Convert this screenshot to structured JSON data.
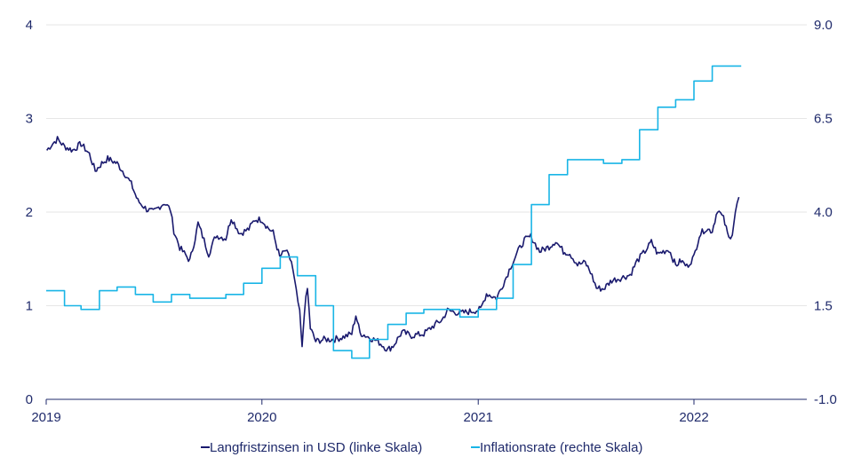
{
  "chart_data": {
    "type": "line",
    "x_range": [
      "2019-01-01",
      "2022-12-31"
    ],
    "x_ticks": [
      "2019",
      "2020",
      "2021",
      "2022"
    ],
    "y_left": {
      "ticks": [
        "0",
        "1",
        "2",
        "3",
        "4"
      ],
      "min": 0,
      "max": 4
    },
    "y_right": {
      "ticks": [
        "-1.0",
        "1.5",
        "4.0",
        "6.5",
        "9.0"
      ],
      "min": -1.0,
      "max": 9.0
    },
    "grid": "horizontal",
    "legend_placement": "bottom",
    "series": [
      {
        "name": "Langfristzinsen in USD (linke Skala)",
        "axis": "left",
        "color": "#1a1a6e",
        "points": [
          [
            "2019-01-02",
            2.66
          ],
          [
            "2019-01-10",
            2.72
          ],
          [
            "2019-01-20",
            2.78
          ],
          [
            "2019-02-01",
            2.7
          ],
          [
            "2019-02-15",
            2.66
          ],
          [
            "2019-03-01",
            2.73
          ],
          [
            "2019-03-15",
            2.62
          ],
          [
            "2019-03-25",
            2.44
          ],
          [
            "2019-04-05",
            2.52
          ],
          [
            "2019-04-15",
            2.57
          ],
          [
            "2019-05-01",
            2.52
          ],
          [
            "2019-05-15",
            2.4
          ],
          [
            "2019-05-25",
            2.3
          ],
          [
            "2019-06-05",
            2.12
          ],
          [
            "2019-06-20",
            2.03
          ],
          [
            "2019-07-01",
            2.0
          ],
          [
            "2019-07-10",
            2.05
          ],
          [
            "2019-07-20",
            2.1
          ],
          [
            "2019-07-30",
            2.03
          ],
          [
            "2019-08-05",
            1.8
          ],
          [
            "2019-08-15",
            1.62
          ],
          [
            "2019-08-25",
            1.54
          ],
          [
            "2019-09-01",
            1.48
          ],
          [
            "2019-09-10",
            1.72
          ],
          [
            "2019-09-15",
            1.88
          ],
          [
            "2019-09-25",
            1.7
          ],
          [
            "2019-10-03",
            1.55
          ],
          [
            "2019-10-15",
            1.75
          ],
          [
            "2019-11-01",
            1.72
          ],
          [
            "2019-11-10",
            1.94
          ],
          [
            "2019-11-25",
            1.77
          ],
          [
            "2019-12-10",
            1.82
          ],
          [
            "2019-12-20",
            1.92
          ],
          [
            "2020-01-01",
            1.92
          ],
          [
            "2020-01-10",
            1.84
          ],
          [
            "2020-01-20",
            1.78
          ],
          [
            "2020-01-31",
            1.52
          ],
          [
            "2020-02-10",
            1.59
          ],
          [
            "2020-02-20",
            1.47
          ],
          [
            "2020-02-28",
            1.15
          ],
          [
            "2020-03-05",
            0.92
          ],
          [
            "2020-03-09",
            0.54
          ],
          [
            "2020-03-13",
            0.96
          ],
          [
            "2020-03-18",
            1.18
          ],
          [
            "2020-03-23",
            0.76
          ],
          [
            "2020-04-01",
            0.62
          ],
          [
            "2020-04-15",
            0.64
          ],
          [
            "2020-05-01",
            0.64
          ],
          [
            "2020-05-15",
            0.66
          ],
          [
            "2020-06-01",
            0.7
          ],
          [
            "2020-06-08",
            0.9
          ],
          [
            "2020-06-15",
            0.71
          ],
          [
            "2020-07-01",
            0.66
          ],
          [
            "2020-07-15",
            0.62
          ],
          [
            "2020-08-01",
            0.53
          ],
          [
            "2020-08-10",
            0.57
          ],
          [
            "2020-08-25",
            0.72
          ],
          [
            "2020-09-10",
            0.68
          ],
          [
            "2020-10-01",
            0.7
          ],
          [
            "2020-10-20",
            0.8
          ],
          [
            "2020-11-01",
            0.85
          ],
          [
            "2020-11-10",
            0.95
          ],
          [
            "2020-12-01",
            0.92
          ],
          [
            "2020-12-20",
            0.94
          ],
          [
            "2021-01-05",
            0.96
          ],
          [
            "2021-01-15",
            1.13
          ],
          [
            "2021-02-01",
            1.08
          ],
          [
            "2021-02-15",
            1.27
          ],
          [
            "2021-02-25",
            1.42
          ],
          [
            "2021-03-10",
            1.59
          ],
          [
            "2021-03-20",
            1.7
          ],
          [
            "2021-03-31",
            1.74
          ],
          [
            "2021-04-15",
            1.58
          ],
          [
            "2021-05-01",
            1.63
          ],
          [
            "2021-05-12",
            1.69
          ],
          [
            "2021-05-25",
            1.58
          ],
          [
            "2021-06-05",
            1.56
          ],
          [
            "2021-06-18",
            1.44
          ],
          [
            "2021-07-01",
            1.46
          ],
          [
            "2021-07-10",
            1.36
          ],
          [
            "2021-07-20",
            1.19
          ],
          [
            "2021-08-01",
            1.18
          ],
          [
            "2021-08-15",
            1.27
          ],
          [
            "2021-09-01",
            1.3
          ],
          [
            "2021-09-15",
            1.33
          ],
          [
            "2021-09-27",
            1.48
          ],
          [
            "2021-10-10",
            1.58
          ],
          [
            "2021-10-21",
            1.68
          ],
          [
            "2021-11-01",
            1.55
          ],
          [
            "2021-11-10",
            1.58
          ],
          [
            "2021-11-20",
            1.6
          ],
          [
            "2021-12-01",
            1.43
          ],
          [
            "2021-12-10",
            1.48
          ],
          [
            "2021-12-20",
            1.42
          ],
          [
            "2022-01-01",
            1.52
          ],
          [
            "2022-01-10",
            1.75
          ],
          [
            "2022-01-20",
            1.82
          ],
          [
            "2022-02-01",
            1.8
          ],
          [
            "2022-02-10",
            2.03
          ],
          [
            "2022-02-20",
            1.93
          ],
          [
            "2022-03-01",
            1.72
          ],
          [
            "2022-03-07",
            1.78
          ],
          [
            "2022-03-12",
            2.0
          ],
          [
            "2022-03-18",
            2.16
          ]
        ]
      },
      {
        "name": "Inflationsrate (rechte Skala)",
        "axis": "right",
        "color": "#19b5e6",
        "steps": [
          [
            "2019-01-01",
            1.9
          ],
          [
            "2019-02-01",
            1.5
          ],
          [
            "2019-03-01",
            1.4
          ],
          [
            "2019-04-01",
            1.9
          ],
          [
            "2019-05-01",
            2.0
          ],
          [
            "2019-06-01",
            1.8
          ],
          [
            "2019-07-01",
            1.6
          ],
          [
            "2019-08-01",
            1.8
          ],
          [
            "2019-09-01",
            1.7
          ],
          [
            "2019-11-01",
            1.8
          ],
          [
            "2019-12-01",
            2.1
          ],
          [
            "2020-01-01",
            2.5
          ],
          [
            "2020-02-01",
            2.8
          ],
          [
            "2020-03-01",
            2.3
          ],
          [
            "2020-04-01",
            1.5
          ],
          [
            "2020-05-01",
            0.3
          ],
          [
            "2020-06-01",
            0.1
          ],
          [
            "2020-07-01",
            0.6
          ],
          [
            "2020-08-01",
            1.0
          ],
          [
            "2020-09-01",
            1.3
          ],
          [
            "2020-10-01",
            1.4
          ],
          [
            "2020-12-01",
            1.2
          ],
          [
            "2021-01-01",
            1.4
          ],
          [
            "2021-02-01",
            1.7
          ],
          [
            "2021-03-01",
            2.6
          ],
          [
            "2021-04-01",
            4.2
          ],
          [
            "2021-05-01",
            5.0
          ],
          [
            "2021-06-01",
            5.4
          ],
          [
            "2021-08-01",
            5.3
          ],
          [
            "2021-09-01",
            5.4
          ],
          [
            "2021-10-01",
            6.2
          ],
          [
            "2021-11-01",
            6.8
          ],
          [
            "2021-12-01",
            7.0
          ],
          [
            "2022-01-01",
            7.5
          ],
          [
            "2022-02-01",
            7.9
          ],
          [
            "2022-03-01",
            7.9
          ]
        ]
      }
    ]
  }
}
